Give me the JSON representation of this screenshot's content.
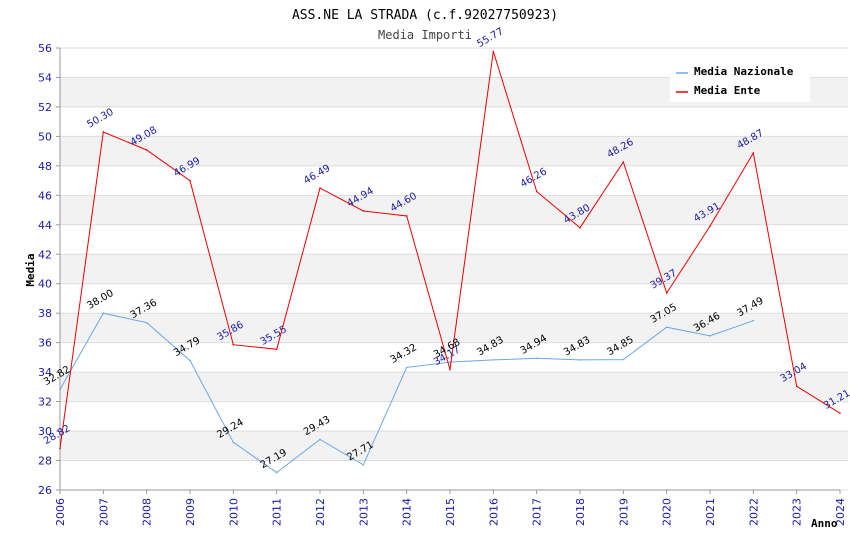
{
  "chart_data": {
    "type": "line",
    "title": "ASS.NE LA STRADA (c.f.92027750923)",
    "subtitle": "Media Importi",
    "xlabel": "Anno",
    "ylabel": "Media",
    "ylim": [
      26,
      56
    ],
    "ytick_step": 2,
    "grid": "horizontal bands",
    "legend_position": "top-right",
    "categories": [
      "2006",
      "2007",
      "2008",
      "2009",
      "2010",
      "2011",
      "2012",
      "2013",
      "2014",
      "2015",
      "2016",
      "2017",
      "2018",
      "2019",
      "2020",
      "2021",
      "2022",
      "2023",
      "2024"
    ],
    "series": [
      {
        "name": "Media Nazionale",
        "color": "#6aa8e8",
        "label_color": "#000000",
        "values": [
          32.82,
          38.0,
          37.36,
          34.79,
          29.24,
          27.19,
          29.43,
          27.71,
          34.32,
          34.68,
          34.83,
          34.94,
          34.83,
          34.85,
          37.05,
          36.46,
          37.49,
          null,
          null
        ],
        "labels": [
          "32.82",
          "38.00",
          "37.36",
          "34.79",
          "29.24",
          "27.19",
          "29.43",
          "27.71",
          "34.32",
          "34.68",
          "34.83",
          "34.94",
          "34.83",
          "34.85",
          "37.05",
          "36.46",
          "37.49",
          "",
          ""
        ]
      },
      {
        "name": "Media Ente",
        "color": "#ee0000",
        "label_color": "#1a1aa6",
        "values": [
          28.82,
          50.3,
          49.08,
          46.99,
          35.86,
          35.55,
          46.49,
          44.94,
          44.6,
          34.17,
          55.77,
          46.26,
          43.8,
          48.26,
          39.37,
          43.91,
          48.87,
          33.04,
          31.21
        ],
        "labels": [
          "28.82",
          "50.30",
          "49.08",
          "46.99",
          "35.86",
          "35.55",
          "46.49",
          "44.94",
          "44.60",
          "34.17",
          "55.77",
          "46.26",
          "43.80",
          "48.26",
          "39.37",
          "43.91",
          "48.87",
          "33.04",
          "31.21"
        ]
      }
    ]
  }
}
